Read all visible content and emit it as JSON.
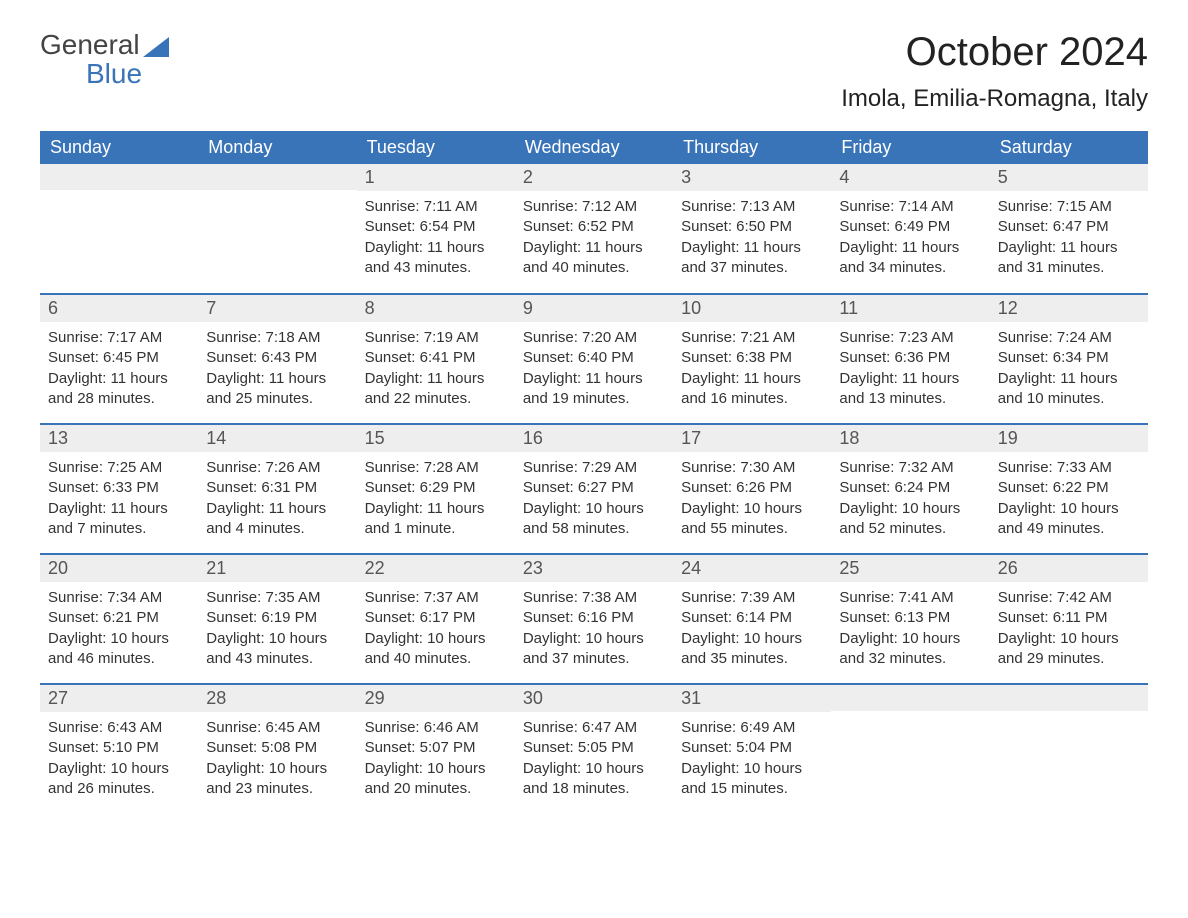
{
  "logo": {
    "word1": "General",
    "word2": "Blue"
  },
  "title": "October 2024",
  "location": "Imola, Emilia-Romagna, Italy",
  "colors": {
    "header_bg": "#3a74b8",
    "header_text": "#ffffff",
    "daynum_bg": "#eeeeee",
    "row_border": "#3a74b8",
    "body_text": "#333333",
    "logo_gray": "#444444",
    "logo_blue": "#3a74b8",
    "page_bg": "#ffffff"
  },
  "typography": {
    "title_fontsize_pt": 30,
    "location_fontsize_pt": 18,
    "th_fontsize_pt": 13,
    "daynum_fontsize_pt": 13,
    "body_fontsize_pt": 11
  },
  "calendar": {
    "type": "table",
    "columns": [
      "Sunday",
      "Monday",
      "Tuesday",
      "Wednesday",
      "Thursday",
      "Friday",
      "Saturday"
    ],
    "weeks": [
      [
        null,
        null,
        {
          "day": "1",
          "sunrise": "Sunrise: 7:11 AM",
          "sunset": "Sunset: 6:54 PM",
          "daylight": "Daylight: 11 hours and 43 minutes."
        },
        {
          "day": "2",
          "sunrise": "Sunrise: 7:12 AM",
          "sunset": "Sunset: 6:52 PM",
          "daylight": "Daylight: 11 hours and 40 minutes."
        },
        {
          "day": "3",
          "sunrise": "Sunrise: 7:13 AM",
          "sunset": "Sunset: 6:50 PM",
          "daylight": "Daylight: 11 hours and 37 minutes."
        },
        {
          "day": "4",
          "sunrise": "Sunrise: 7:14 AM",
          "sunset": "Sunset: 6:49 PM",
          "daylight": "Daylight: 11 hours and 34 minutes."
        },
        {
          "day": "5",
          "sunrise": "Sunrise: 7:15 AM",
          "sunset": "Sunset: 6:47 PM",
          "daylight": "Daylight: 11 hours and 31 minutes."
        }
      ],
      [
        {
          "day": "6",
          "sunrise": "Sunrise: 7:17 AM",
          "sunset": "Sunset: 6:45 PM",
          "daylight": "Daylight: 11 hours and 28 minutes."
        },
        {
          "day": "7",
          "sunrise": "Sunrise: 7:18 AM",
          "sunset": "Sunset: 6:43 PM",
          "daylight": "Daylight: 11 hours and 25 minutes."
        },
        {
          "day": "8",
          "sunrise": "Sunrise: 7:19 AM",
          "sunset": "Sunset: 6:41 PM",
          "daylight": "Daylight: 11 hours and 22 minutes."
        },
        {
          "day": "9",
          "sunrise": "Sunrise: 7:20 AM",
          "sunset": "Sunset: 6:40 PM",
          "daylight": "Daylight: 11 hours and 19 minutes."
        },
        {
          "day": "10",
          "sunrise": "Sunrise: 7:21 AM",
          "sunset": "Sunset: 6:38 PM",
          "daylight": "Daylight: 11 hours and 16 minutes."
        },
        {
          "day": "11",
          "sunrise": "Sunrise: 7:23 AM",
          "sunset": "Sunset: 6:36 PM",
          "daylight": "Daylight: 11 hours and 13 minutes."
        },
        {
          "day": "12",
          "sunrise": "Sunrise: 7:24 AM",
          "sunset": "Sunset: 6:34 PM",
          "daylight": "Daylight: 11 hours and 10 minutes."
        }
      ],
      [
        {
          "day": "13",
          "sunrise": "Sunrise: 7:25 AM",
          "sunset": "Sunset: 6:33 PM",
          "daylight": "Daylight: 11 hours and 7 minutes."
        },
        {
          "day": "14",
          "sunrise": "Sunrise: 7:26 AM",
          "sunset": "Sunset: 6:31 PM",
          "daylight": "Daylight: 11 hours and 4 minutes."
        },
        {
          "day": "15",
          "sunrise": "Sunrise: 7:28 AM",
          "sunset": "Sunset: 6:29 PM",
          "daylight": "Daylight: 11 hours and 1 minute."
        },
        {
          "day": "16",
          "sunrise": "Sunrise: 7:29 AM",
          "sunset": "Sunset: 6:27 PM",
          "daylight": "Daylight: 10 hours and 58 minutes."
        },
        {
          "day": "17",
          "sunrise": "Sunrise: 7:30 AM",
          "sunset": "Sunset: 6:26 PM",
          "daylight": "Daylight: 10 hours and 55 minutes."
        },
        {
          "day": "18",
          "sunrise": "Sunrise: 7:32 AM",
          "sunset": "Sunset: 6:24 PM",
          "daylight": "Daylight: 10 hours and 52 minutes."
        },
        {
          "day": "19",
          "sunrise": "Sunrise: 7:33 AM",
          "sunset": "Sunset: 6:22 PM",
          "daylight": "Daylight: 10 hours and 49 minutes."
        }
      ],
      [
        {
          "day": "20",
          "sunrise": "Sunrise: 7:34 AM",
          "sunset": "Sunset: 6:21 PM",
          "daylight": "Daylight: 10 hours and 46 minutes."
        },
        {
          "day": "21",
          "sunrise": "Sunrise: 7:35 AM",
          "sunset": "Sunset: 6:19 PM",
          "daylight": "Daylight: 10 hours and 43 minutes."
        },
        {
          "day": "22",
          "sunrise": "Sunrise: 7:37 AM",
          "sunset": "Sunset: 6:17 PM",
          "daylight": "Daylight: 10 hours and 40 minutes."
        },
        {
          "day": "23",
          "sunrise": "Sunrise: 7:38 AM",
          "sunset": "Sunset: 6:16 PM",
          "daylight": "Daylight: 10 hours and 37 minutes."
        },
        {
          "day": "24",
          "sunrise": "Sunrise: 7:39 AM",
          "sunset": "Sunset: 6:14 PM",
          "daylight": "Daylight: 10 hours and 35 minutes."
        },
        {
          "day": "25",
          "sunrise": "Sunrise: 7:41 AM",
          "sunset": "Sunset: 6:13 PM",
          "daylight": "Daylight: 10 hours and 32 minutes."
        },
        {
          "day": "26",
          "sunrise": "Sunrise: 7:42 AM",
          "sunset": "Sunset: 6:11 PM",
          "daylight": "Daylight: 10 hours and 29 minutes."
        }
      ],
      [
        {
          "day": "27",
          "sunrise": "Sunrise: 6:43 AM",
          "sunset": "Sunset: 5:10 PM",
          "daylight": "Daylight: 10 hours and 26 minutes."
        },
        {
          "day": "28",
          "sunrise": "Sunrise: 6:45 AM",
          "sunset": "Sunset: 5:08 PM",
          "daylight": "Daylight: 10 hours and 23 minutes."
        },
        {
          "day": "29",
          "sunrise": "Sunrise: 6:46 AM",
          "sunset": "Sunset: 5:07 PM",
          "daylight": "Daylight: 10 hours and 20 minutes."
        },
        {
          "day": "30",
          "sunrise": "Sunrise: 6:47 AM",
          "sunset": "Sunset: 5:05 PM",
          "daylight": "Daylight: 10 hours and 18 minutes."
        },
        {
          "day": "31",
          "sunrise": "Sunrise: 6:49 AM",
          "sunset": "Sunset: 5:04 PM",
          "daylight": "Daylight: 10 hours and 15 minutes."
        },
        null,
        null
      ]
    ]
  }
}
